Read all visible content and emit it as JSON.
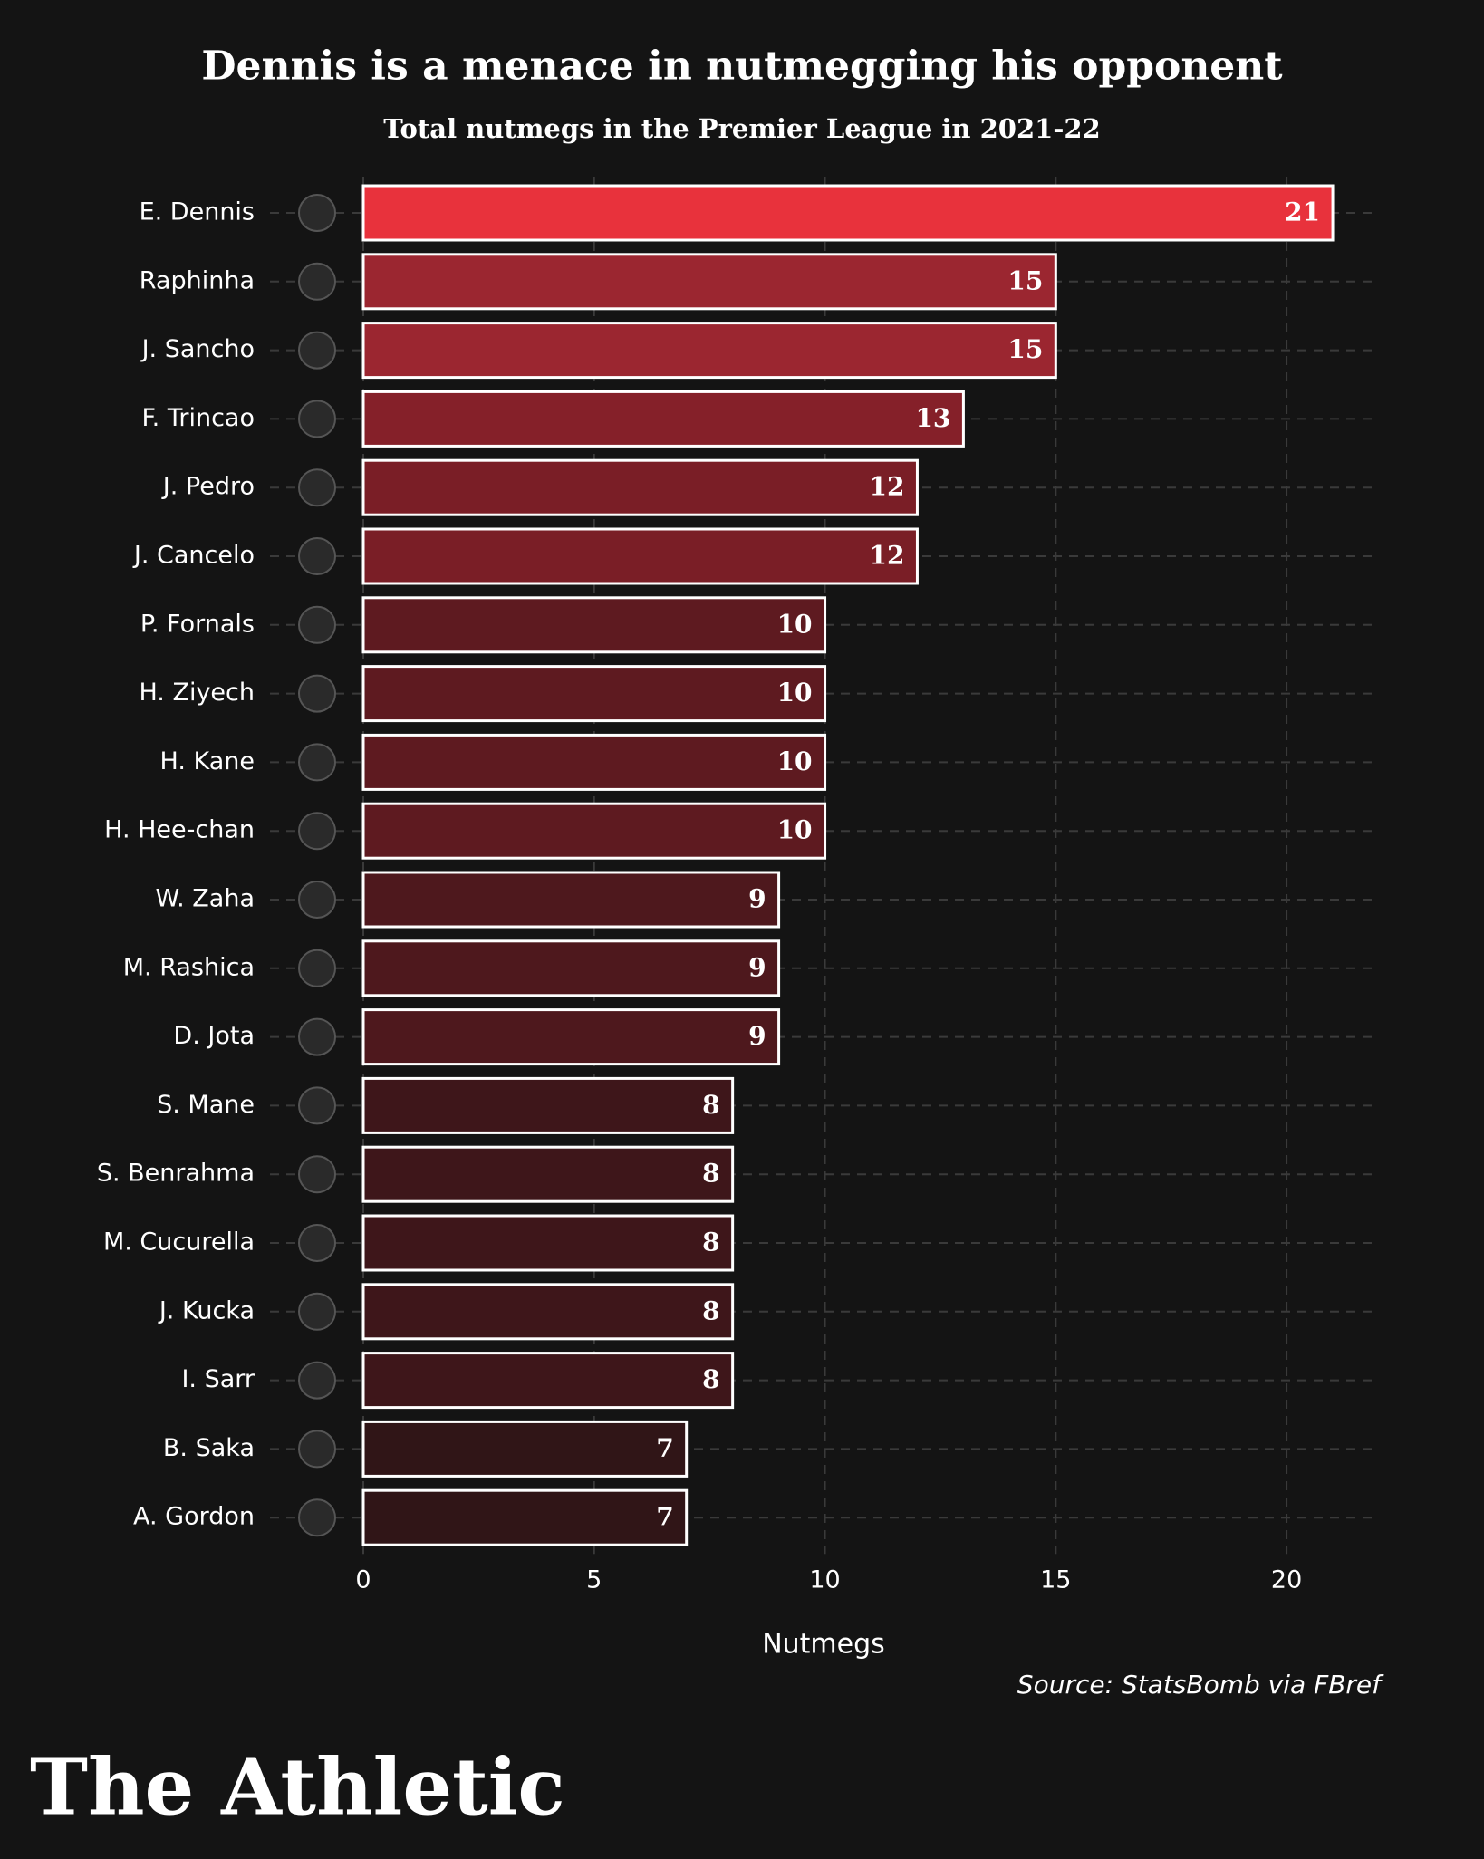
{
  "chart_data": {
    "type": "barh",
    "title": "Dennis is a menace in nutmegging his opponent",
    "subtitle": "Total nutmegs in the Premier League in 2021-22",
    "categories": [
      "E. Dennis",
      "Raphinha",
      "J. Sancho",
      "F. Trincao",
      "J. Pedro",
      "J. Cancelo",
      "P. Fornals",
      "H. Ziyech",
      "H. Kane",
      "H. Hee-chan",
      "W. Zaha",
      "M. Rashica",
      "D. Jota",
      "S. Mane",
      "S. Benrahma",
      "M. Cucurella",
      "J. Kucka",
      "I. Sarr",
      "B. Saka",
      "A. Gordon"
    ],
    "values": [
      21,
      15,
      15,
      13,
      12,
      12,
      10,
      10,
      10,
      10,
      9,
      9,
      9,
      8,
      8,
      8,
      8,
      8,
      7,
      7
    ],
    "colors": [
      "#e8323c",
      "#9b2630",
      "#9b2630",
      "#852029",
      "#7a1e26",
      "#7a1e26",
      "#5e1a20",
      "#5e1a20",
      "#5e1a20",
      "#5e1a20",
      "#4e181d",
      "#4e181d",
      "#4e181d",
      "#3e161a",
      "#3e161a",
      "#3e161a",
      "#3e161a",
      "#3e161a",
      "#301517",
      "#301517"
    ],
    "xlabel": "Nutmegs",
    "xlim": [
      0,
      22
    ],
    "xticks": [
      0,
      5,
      10,
      15,
      20
    ],
    "grid": true,
    "source": "Source: StatsBomb via FBref",
    "brand": "The Athletic"
  }
}
